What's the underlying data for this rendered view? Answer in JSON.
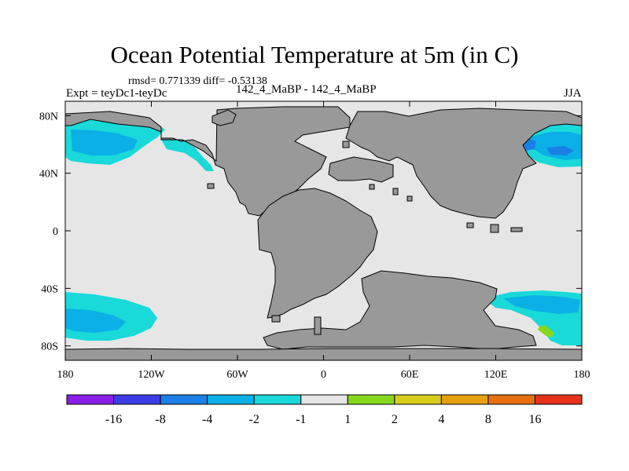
{
  "title": "Ocean Potential Temperature at 5m (in C)",
  "stats": "rmsd= 0.771339 diff= -0.53138",
  "left_label": "Expt = teyDc1-teyDc",
  "center_label": "142_4_MaBP - 142_4_MaBP",
  "right_label": "JJA",
  "map": {
    "x_tick_labels": [
      "180",
      "120W",
      "60W",
      "0",
      "60E",
      "120E",
      "180"
    ],
    "y_tick_labels": [
      "80N",
      "40N",
      "0",
      "40S",
      "80S"
    ],
    "lon_range": [
      -180,
      180
    ],
    "lat_range": [
      -90,
      90
    ],
    "colors": {
      "ocean_neutral": "#e6e6e6",
      "land": "#999999",
      "cyan": "#19d9d9",
      "light_blue": "#0ab0e6",
      "mid_blue": "#1a80e6",
      "green": "#86d81c"
    }
  },
  "colorbar": {
    "labels": [
      "-16",
      "-8",
      "-4",
      "-2",
      "-1",
      "1",
      "2",
      "4",
      "8",
      "16"
    ],
    "colors": [
      "#8b1ee6",
      "#3c3ce6",
      "#1a80e6",
      "#0ab0e6",
      "#19d9d9",
      "#e6e6e6",
      "#86d81c",
      "#d6cc1a",
      "#e6a00f",
      "#e6700f",
      "#e6321a"
    ]
  }
}
